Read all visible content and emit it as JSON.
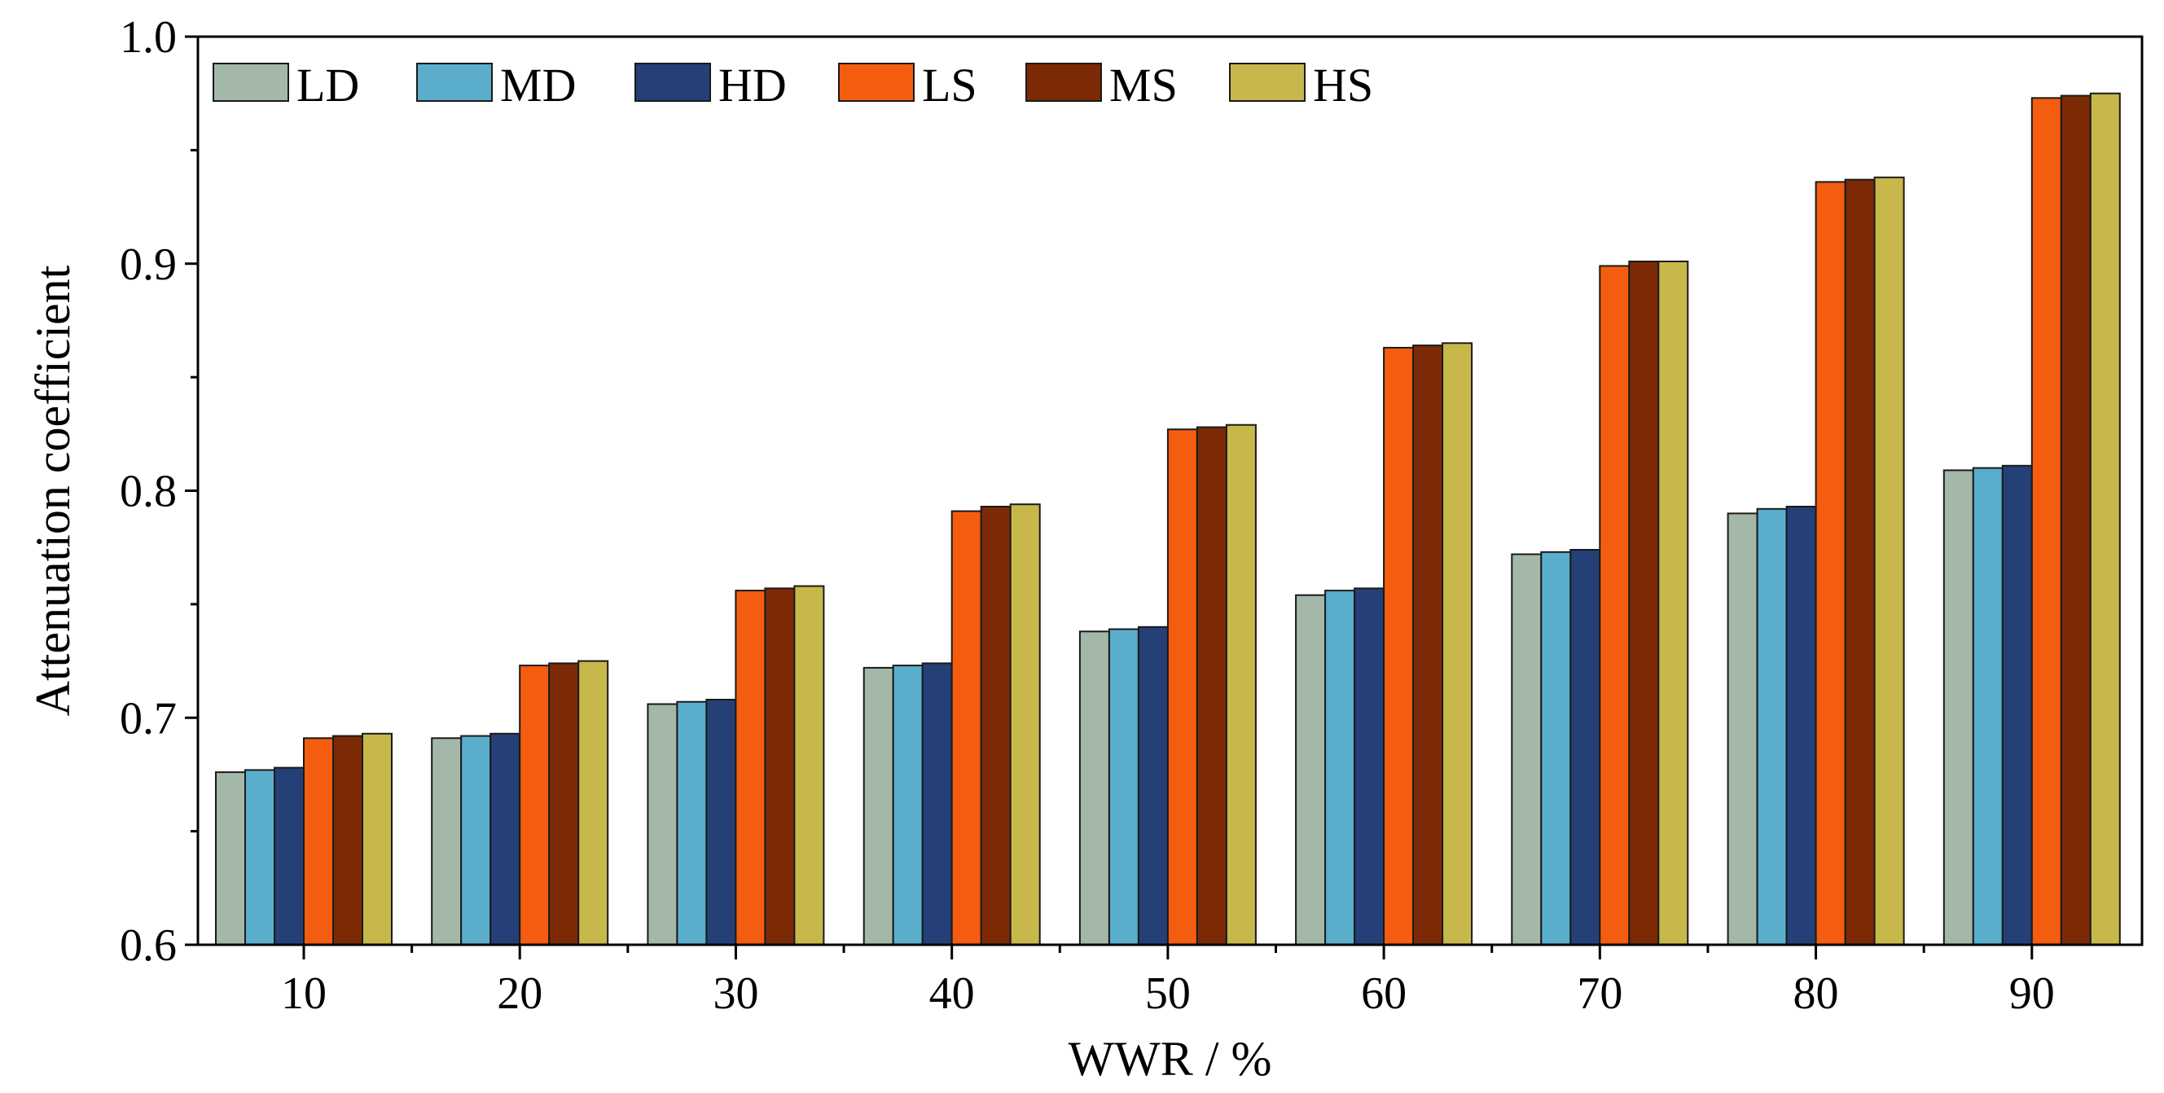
{
  "chart_data": {
    "type": "bar",
    "title": "",
    "xlabel": "WWR / %",
    "ylabel": "Attenuation coefficient",
    "categories": [
      "10",
      "20",
      "30",
      "40",
      "50",
      "60",
      "70",
      "80",
      "90"
    ],
    "ylim": [
      0.6,
      1.0
    ],
    "yticks": [
      "0.6",
      "0.7",
      "0.8",
      "0.9",
      "1.0"
    ],
    "ytick_values": [
      0.6,
      0.7,
      0.8,
      0.9,
      1.0
    ],
    "legend_position": "top-left",
    "series": [
      {
        "name": "LD",
        "color": "#a4b8aa",
        "values": [
          0.676,
          0.691,
          0.706,
          0.722,
          0.738,
          0.754,
          0.772,
          0.79,
          0.809
        ]
      },
      {
        "name": "MD",
        "color": "#5aaecb",
        "values": [
          0.677,
          0.692,
          0.707,
          0.723,
          0.739,
          0.756,
          0.773,
          0.792,
          0.81
        ]
      },
      {
        "name": "HD",
        "color": "#253f77",
        "values": [
          0.678,
          0.693,
          0.708,
          0.724,
          0.74,
          0.757,
          0.774,
          0.793,
          0.811
        ]
      },
      {
        "name": "LS",
        "color": "#f45d10",
        "values": [
          0.691,
          0.723,
          0.756,
          0.791,
          0.827,
          0.863,
          0.899,
          0.936,
          0.973
        ]
      },
      {
        "name": "MS",
        "color": "#7c2a06",
        "values": [
          0.692,
          0.724,
          0.757,
          0.793,
          0.828,
          0.864,
          0.901,
          0.937,
          0.974
        ]
      },
      {
        "name": "HS",
        "color": "#c8b84b",
        "values": [
          0.693,
          0.725,
          0.758,
          0.794,
          0.829,
          0.865,
          0.901,
          0.938,
          0.975
        ]
      }
    ]
  }
}
